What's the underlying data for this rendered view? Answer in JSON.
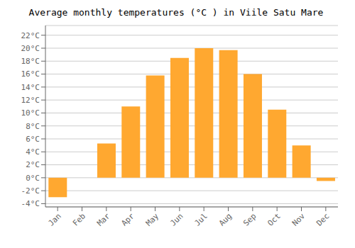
{
  "chart_data": {
    "type": "bar",
    "title": "Average monthly temperatures (°C ) in Viile Satu Mare",
    "categories": [
      "Jan",
      "Feb",
      "Mar",
      "Apr",
      "May",
      "Jun",
      "Jul",
      "Aug",
      "Sep",
      "Oct",
      "Nov",
      "Dec"
    ],
    "values": [
      -3.0,
      0.0,
      5.3,
      11.0,
      15.8,
      18.5,
      20.0,
      19.7,
      16.0,
      10.5,
      5.0,
      -0.5
    ],
    "color": "#FFA830",
    "ylim": [
      -4.5,
      23.5
    ],
    "yticks": [
      {
        "value": -4,
        "label": "-4°C"
      },
      {
        "value": -2,
        "label": "-2°C"
      },
      {
        "value": 0,
        "label": "0°C"
      },
      {
        "value": 2,
        "label": "2°C"
      },
      {
        "value": 4,
        "label": "4°C"
      },
      {
        "value": 6,
        "label": "6°C"
      },
      {
        "value": 8,
        "label": "8°C"
      },
      {
        "value": 10,
        "label": "10°C"
      },
      {
        "value": 12,
        "label": "12°C"
      },
      {
        "value": 14,
        "label": "14°C"
      },
      {
        "value": 16,
        "label": "16°C"
      },
      {
        "value": 18,
        "label": "18°C"
      },
      {
        "value": 20,
        "label": "20°C"
      },
      {
        "value": 22,
        "label": "22°C"
      }
    ],
    "grid": true
  }
}
